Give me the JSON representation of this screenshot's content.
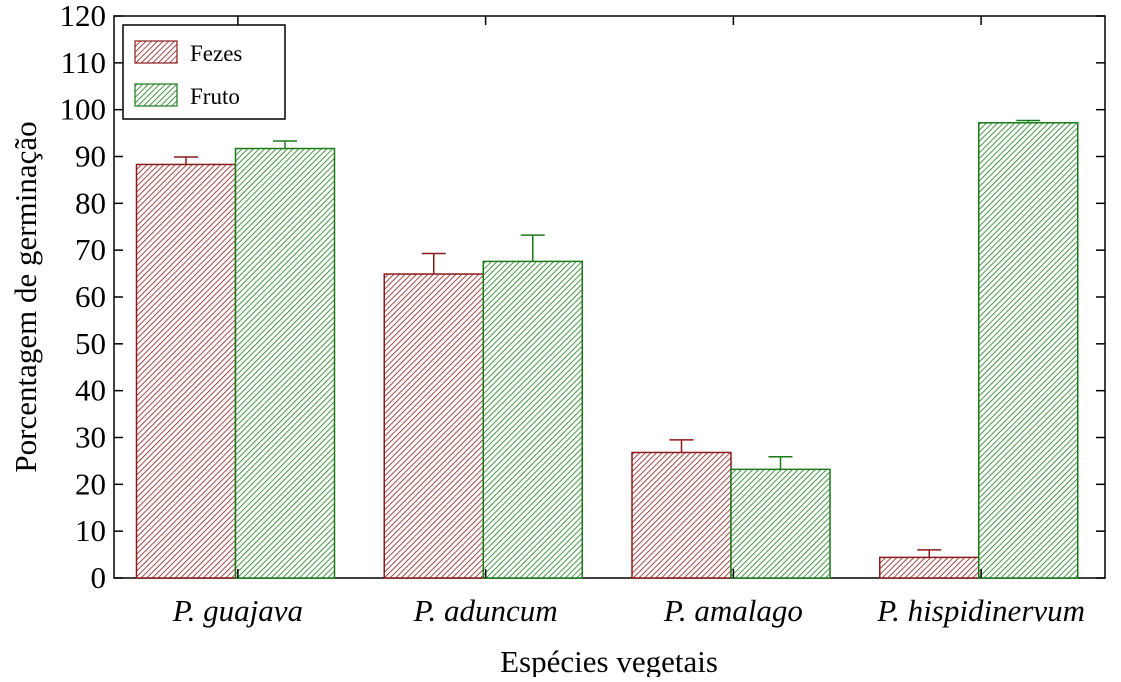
{
  "chart_data": {
    "type": "bar",
    "xlabel": "Espécies vegetais",
    "ylabel": "Porcentagem de germinação",
    "ylim": [
      0,
      120
    ],
    "yticks": [
      0,
      10,
      20,
      30,
      40,
      50,
      60,
      70,
      80,
      90,
      100,
      110,
      120
    ],
    "categories": [
      "P. guajava",
      "P. aduncum",
      "P. amalago",
      "P. hispidinervum"
    ],
    "series": [
      {
        "name": "Fezes",
        "color": "#8b1a1a",
        "values": [
          88.3,
          64.9,
          26.8,
          4.4
        ],
        "error": [
          1.6,
          4.4,
          2.7,
          1.6
        ]
      },
      {
        "name": "Fruto",
        "color": "#1a7a1a",
        "values": [
          91.7,
          67.6,
          23.2,
          97.2
        ],
        "error": [
          1.6,
          5.6,
          2.7,
          0.5
        ]
      }
    ],
    "legend_position": "top-left",
    "grid": false,
    "pattern": "diagonal-hatch"
  }
}
